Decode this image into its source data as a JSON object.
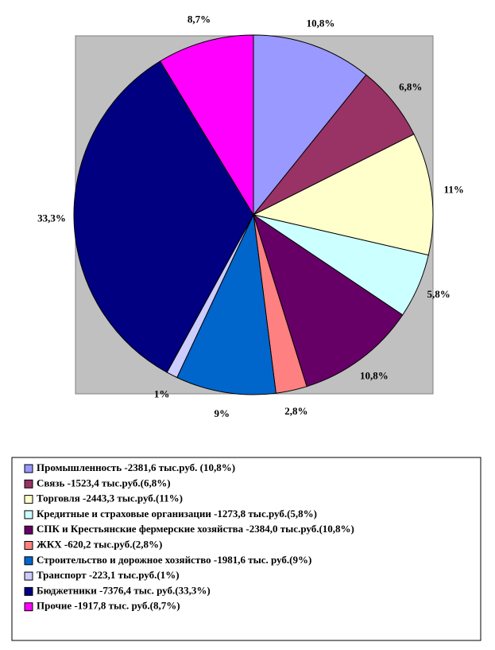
{
  "chart_data": {
    "type": "pie",
    "categories": [
      "Промышленность -2381,6 тыс.руб. (10,8%)",
      "Связь -1523,4 тыс.руб.(6,8%)",
      "Торговля -2443,3 тыс.руб.(11%)",
      "Кредитные и страховые организации -1273,8 тыс.руб.(5,8%)",
      "СПК и Крестьянские фермерские хозяйства -2384,0 тыс.руб.(10,8%)",
      "ЖКХ -620,2 тыс.руб.(2,8%)",
      "Строительство и дорожное хозяйство -1981,6 тыс. руб.(9%)",
      "Транспорт -223,1 тыс.руб.(1%)",
      "Бюджетники -7376,4 тыс. руб.(33,3%)",
      "Прочие -1917,8 тыс. руб.(8,7%)"
    ],
    "values": [
      10.8,
      6.8,
      11,
      5.8,
      10.8,
      2.8,
      9,
      1,
      33.3,
      8.7
    ],
    "value_labels": [
      "10,8%",
      "6,8%",
      "11%",
      "5,8%",
      "10,8%",
      "2,8%",
      "9%",
      "1%",
      "33,3%",
      "8,7%"
    ],
    "colors": [
      "#9999ff",
      "#993366",
      "#ffffcc",
      "#ccffff",
      "#660066",
      "#ff8080",
      "#0066cc",
      "#ccccff",
      "#000080",
      "#ff00ff"
    ]
  }
}
